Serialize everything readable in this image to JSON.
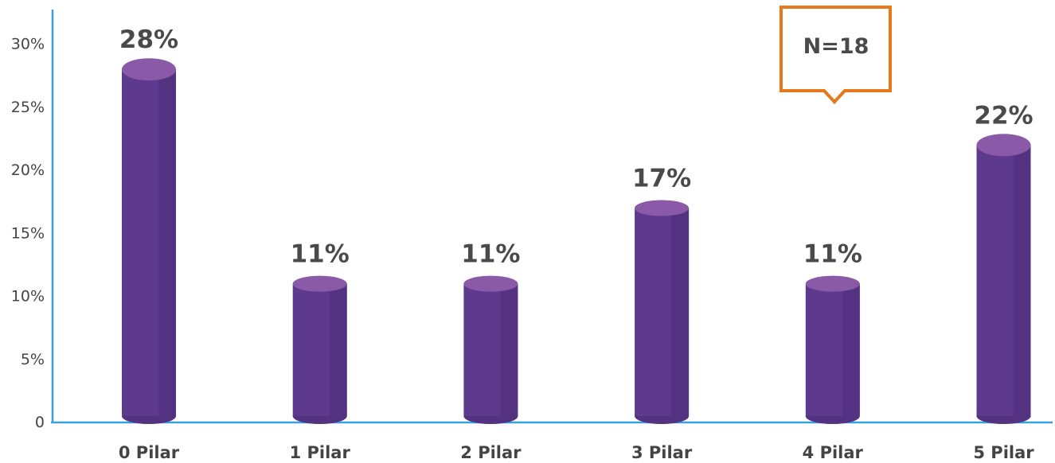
{
  "chart_data": {
    "type": "bar",
    "categories": [
      "0 Pilar",
      "1 Pilar",
      "2 Pilar",
      "3 Pilar",
      "4 Pilar",
      "5 Pilar"
    ],
    "values": [
      28,
      11,
      11,
      17,
      11,
      22
    ],
    "data_labels": [
      "28%",
      "11%",
      "11%",
      "17%",
      "11%",
      "22%"
    ],
    "ylim": [
      0,
      32
    ],
    "yticks": [
      {
        "value": 0,
        "label": "0"
      },
      {
        "value": 5,
        "label": "5%"
      },
      {
        "value": 10,
        "label": "10%"
      },
      {
        "value": 15,
        "label": "15%"
      },
      {
        "value": 20,
        "label": "20%"
      },
      {
        "value": 25,
        "label": "25%"
      },
      {
        "value": 30,
        "label": "30%"
      }
    ],
    "grid": false,
    "title": "",
    "xlabel": "",
    "ylabel": "",
    "annotation": "N=18"
  },
  "colors": {
    "bar_body": "#5e3a8e",
    "bar_shade": "#533282",
    "bar_top": "#8a5aa8",
    "axis": "#3aa0dc",
    "callout_border": "#e8781c"
  }
}
